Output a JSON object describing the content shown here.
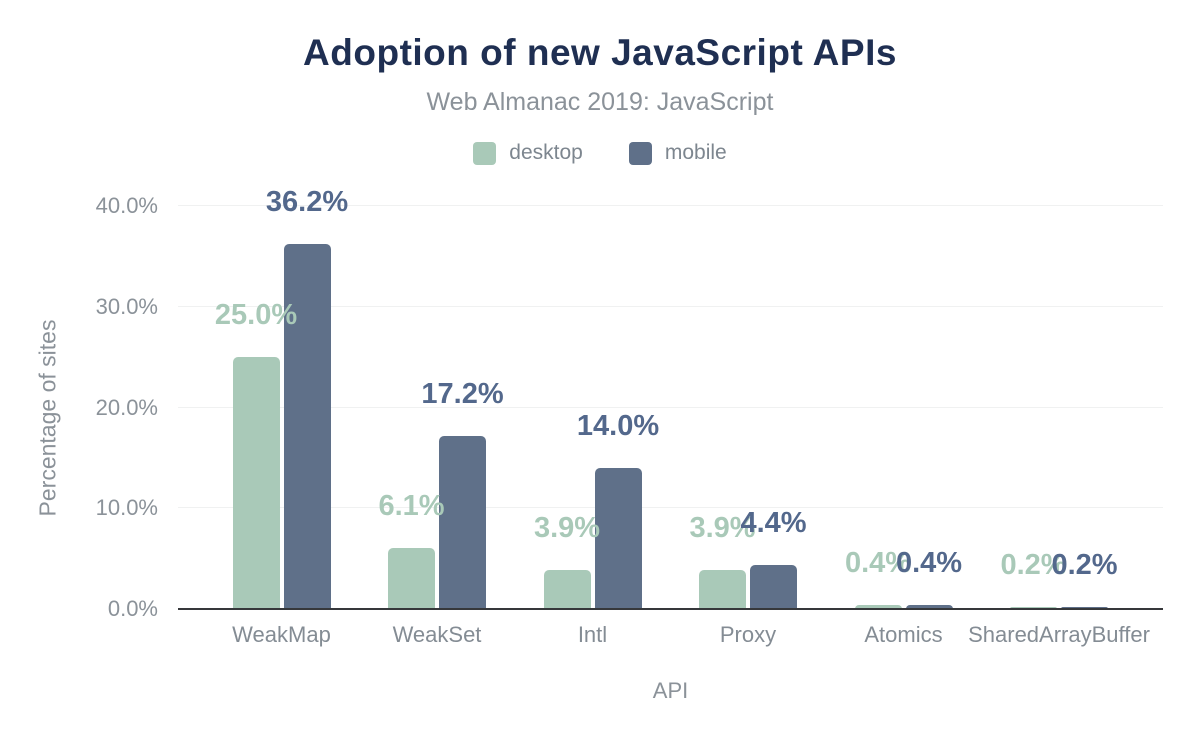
{
  "header": {
    "title": "Adoption of new JavaScript APIs",
    "subtitle": "Web Almanac 2019: JavaScript"
  },
  "legend": [
    {
      "label": "desktop",
      "color": "#a9c9b8"
    },
    {
      "label": "mobile",
      "color": "#5f7089"
    }
  ],
  "chart_data": {
    "type": "bar",
    "title": "Adoption of new JavaScript APIs",
    "subtitle": "Web Almanac 2019: JavaScript",
    "categories": [
      "WeakMap",
      "WeakSet",
      "Intl",
      "Proxy",
      "Atomics",
      "SharedArrayBuffer"
    ],
    "series": [
      {
        "name": "desktop",
        "color": "#a9c9b8",
        "label_color": "#a9c9b8",
        "values": [
          25.0,
          6.1,
          3.9,
          3.9,
          0.4,
          0.2
        ],
        "labels": [
          "25.0%",
          "6.1%",
          "3.9%",
          "3.9%",
          "0.4%",
          "0.2%"
        ]
      },
      {
        "name": "mobile",
        "color": "#5f7089",
        "label_color": "#53688c",
        "values": [
          36.2,
          17.2,
          14.0,
          4.4,
          0.4,
          0.2
        ],
        "labels": [
          "36.2%",
          "17.2%",
          "14.0%",
          "4.4%",
          "0.4%",
          "0.2%"
        ]
      }
    ],
    "xlabel": "API",
    "ylabel": "Percentage of sites",
    "ylim": [
      0,
      40
    ],
    "yticks": [
      "0.0%",
      "10.0%",
      "20.0%",
      "30.0%",
      "40.0%"
    ],
    "grid": true,
    "legend_position": "top"
  },
  "colors": {
    "title": "#1f2f52",
    "subtitle_gray": "#8b9299",
    "axis_line": "#36383b",
    "gridline": "#f0f1f1",
    "desktop": "#a9c9b8",
    "mobile": "#5f7089"
  }
}
